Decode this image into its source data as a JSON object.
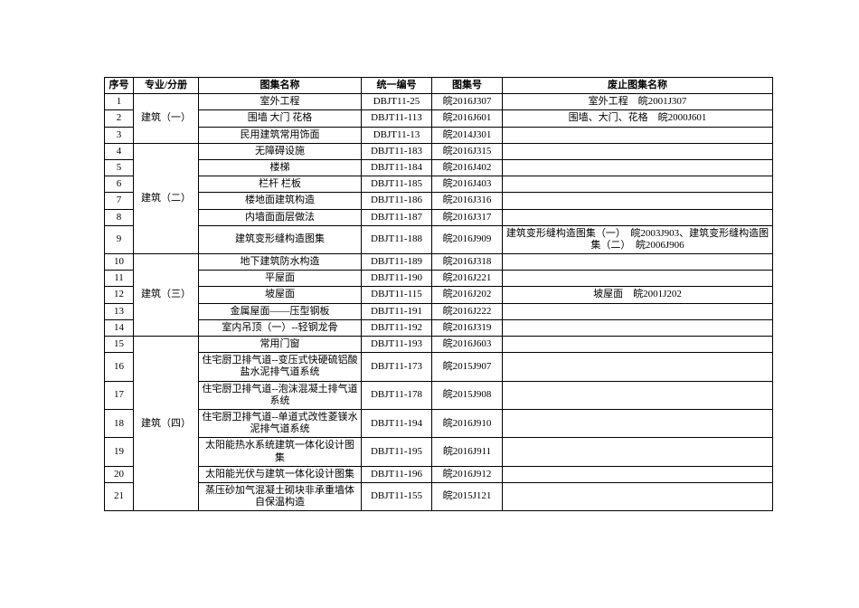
{
  "headers": {
    "seq": "序号",
    "category": "专业/分册",
    "name": "图集名称",
    "code1": "统一编号",
    "code2": "图集号",
    "abolished": "废止图集名称"
  },
  "categories": {
    "c1": "建筑（一）",
    "c2": "建筑（二）",
    "c3": "建筑（三）",
    "c4": "建筑（四）"
  },
  "rows": {
    "r1": {
      "seq": "1",
      "name": "室外工程",
      "code1": "DBJT11-25",
      "code2": "皖2016J307",
      "abol": "室外工程　皖2001J307"
    },
    "r2": {
      "seq": "2",
      "name": "围墙 大门 花格",
      "code1": "DBJT11-113",
      "code2": "皖2016J601",
      "abol": "围墙、大门、花格　皖2000J601"
    },
    "r3": {
      "seq": "3",
      "name": "民用建筑常用饰面",
      "code1": "DBJT11-13",
      "code2": "皖2014J301",
      "abol": ""
    },
    "r4": {
      "seq": "4",
      "name": "无障碍设施",
      "code1": "DBJT11-183",
      "code2": "皖2016J315",
      "abol": ""
    },
    "r5": {
      "seq": "5",
      "name": "楼梯",
      "code1": "DBJT11-184",
      "code2": "皖2016J402",
      "abol": ""
    },
    "r6": {
      "seq": "6",
      "name": "栏杆 栏板",
      "code1": "DBJT11-185",
      "code2": "皖2016J403",
      "abol": ""
    },
    "r7": {
      "seq": "7",
      "name": "楼地面建筑构造",
      "code1": "DBJT11-186",
      "code2": "皖2016J316",
      "abol": ""
    },
    "r8": {
      "seq": "8",
      "name": "内墙面面层做法",
      "code1": "DBJT11-187",
      "code2": "皖2016J317",
      "abol": ""
    },
    "r9": {
      "seq": "9",
      "name": "建筑变形缝构造图集",
      "code1": "DBJT11-188",
      "code2": "皖2016J909",
      "abol": "建筑变形缝构造图集（一）　皖2003J903、建筑变形缝构造图集（二）　皖2006J906"
    },
    "r10": {
      "seq": "10",
      "name": "地下建筑防水构造",
      "code1": "DBJT11-189",
      "code2": "皖2016J318",
      "abol": ""
    },
    "r11": {
      "seq": "11",
      "name": "平屋面",
      "code1": "DBJT11-190",
      "code2": "皖2016J221",
      "abol": ""
    },
    "r12": {
      "seq": "12",
      "name": "坡屋面",
      "code1": "DBJT11-115",
      "code2": "皖2016J202",
      "abol": "坡屋面　皖2001J202"
    },
    "r13": {
      "seq": "13",
      "name": "金属屋面——压型钢板",
      "code1": "DBJT11-191",
      "code2": "皖2016J222",
      "abol": ""
    },
    "r14": {
      "seq": "14",
      "name": "室内吊顶（一）--轻钢龙骨",
      "code1": "DBJT11-192",
      "code2": "皖2016J319",
      "abol": ""
    },
    "r15": {
      "seq": "15",
      "name": "常用门窗",
      "code1": "DBJT11-193",
      "code2": "皖2016J603",
      "abol": ""
    },
    "r16": {
      "seq": "16",
      "name": "住宅厨卫排气道--变压式快硬硫铝酸盐水泥排气道系统",
      "code1": "DBJT11-173",
      "code2": "皖2015J907",
      "abol": ""
    },
    "r17": {
      "seq": "17",
      "name": "住宅厨卫排气道--泡沫混凝土排气道系统",
      "code1": "DBJT11-178",
      "code2": "皖2015J908",
      "abol": ""
    },
    "r18": {
      "seq": "18",
      "name": "住宅厨卫排气道--单道式改性菱镁水泥排气道系统",
      "code1": "DBJT11-194",
      "code2": "皖2016J910",
      "abol": ""
    },
    "r19": {
      "seq": "19",
      "name": "太阳能热水系统建筑一体化设计图集",
      "code1": "DBJT11-195",
      "code2": "皖2016J911",
      "abol": ""
    },
    "r20": {
      "seq": "20",
      "name": "太阳能光伏与建筑一体化设计图集",
      "code1": "DBJT11-196",
      "code2": "皖2016J912",
      "abol": ""
    },
    "r21": {
      "seq": "21",
      "name": "蒸压砂加气混凝土砌块非承重墙体自保温构造",
      "code1": "DBJT11-155",
      "code2": "皖2015J121",
      "abol": ""
    }
  }
}
